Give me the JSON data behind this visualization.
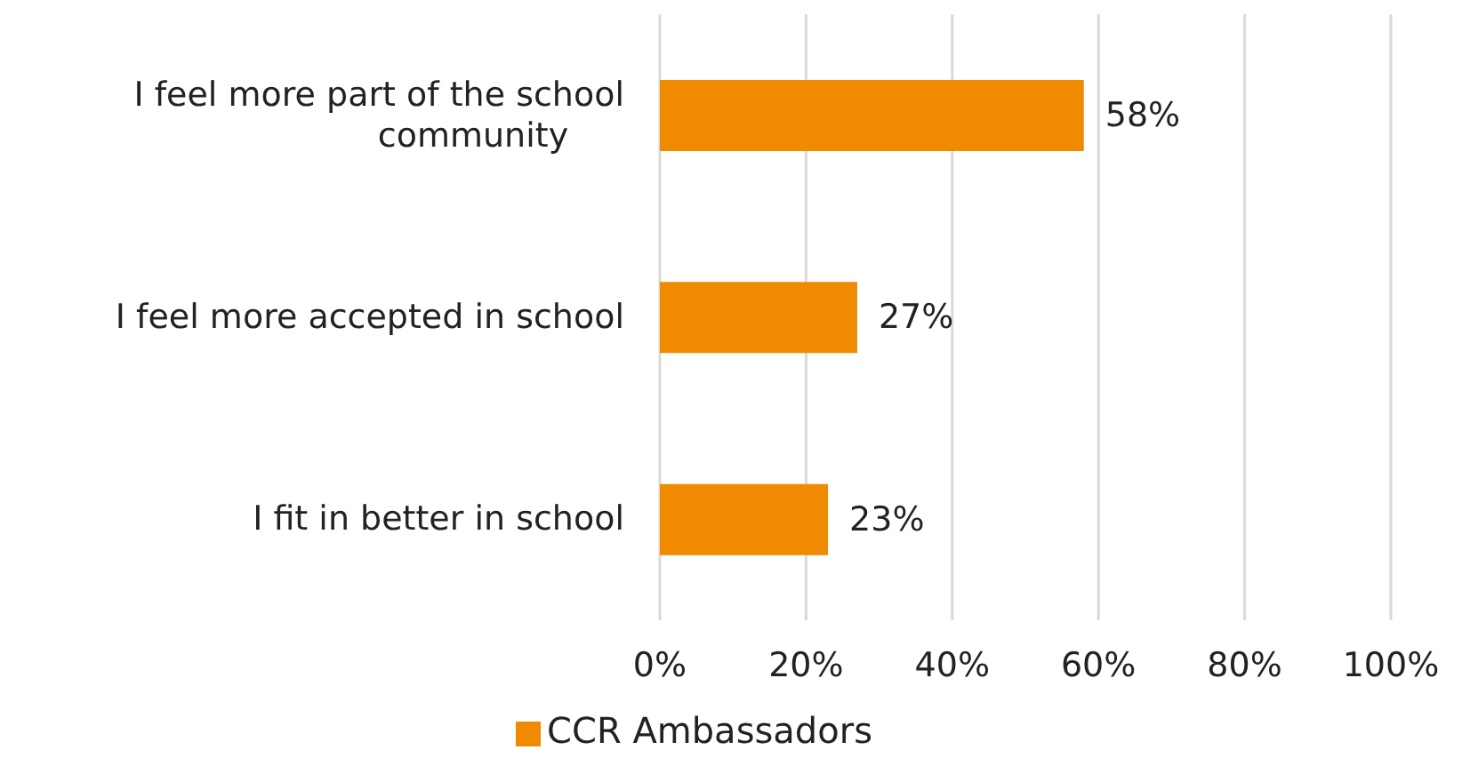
{
  "chart_data": {
    "type": "bar",
    "orientation": "horizontal",
    "categories": [
      "I feel more part of the school community",
      "I feel more accepted in school",
      "I fit in better in school"
    ],
    "series": [
      {
        "name": "CCR Ambassadors",
        "color": "#f08a00",
        "values": [
          58,
          27,
          23
        ],
        "value_labels": [
          "58%",
          "27%",
          "23%"
        ]
      }
    ],
    "xlim": [
      0,
      100
    ],
    "xticks": [
      {
        "value": 0,
        "label": "0%"
      },
      {
        "value": 20,
        "label": "20%"
      },
      {
        "value": 40,
        "label": "40%"
      },
      {
        "value": 60,
        "label": "60%"
      },
      {
        "value": 80,
        "label": "80%"
      },
      {
        "value": 100,
        "label": "100%"
      }
    ],
    "grid": "x",
    "legend": "bottom"
  }
}
